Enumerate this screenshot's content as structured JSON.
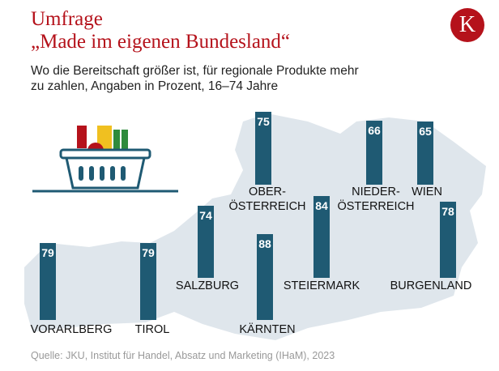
{
  "logo": "K",
  "chart_data": {
    "type": "bar",
    "title": "Umfrage",
    "title2": "„Made im eigenen Bundesland“",
    "subtitle": "Wo die Bereitschaft größer ist, für regionale Produkte mehr zu zahlen, Angaben in Prozent, 16–74 Jahre",
    "source": "Quelle: JKU, Institut für Handel, Absatz und Marketing (IHaM), 2023",
    "categories": [
      "VORARLBERG",
      "TIROL",
      "SALZBURG",
      "KÄRNTEN",
      "OBER-\nÖSTERREICH",
      "STEIERMARK",
      "NIEDER-\nÖSTERREICH",
      "WIEN",
      "BURGENLAND"
    ],
    "values": [
      79,
      79,
      74,
      88,
      75,
      84,
      66,
      65,
      78
    ],
    "color": "#1f5a73"
  }
}
